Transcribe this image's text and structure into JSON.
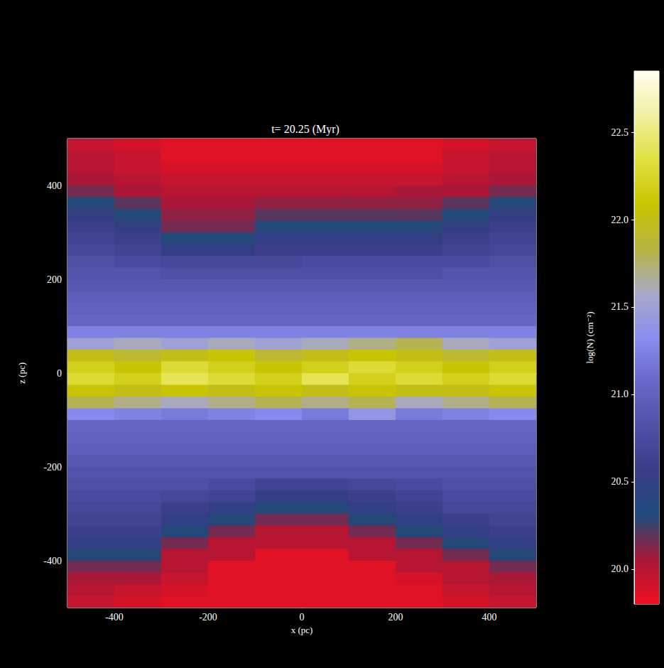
{
  "chart_data": {
    "type": "heatmap",
    "title": "t= 20.25 (Myr)",
    "x_label": "x (pc)",
    "y_label": "z (pc)",
    "xlim": [
      -500,
      500
    ],
    "ylim": [
      -500,
      500
    ],
    "xticks": [
      -400,
      -200,
      0,
      200,
      400
    ],
    "yticks": [
      -400,
      -200,
      0,
      200,
      400
    ],
    "x": [
      -450,
      -350,
      -250,
      -150,
      -50,
      50,
      150,
      250,
      350,
      450
    ],
    "z": [
      487.5,
      462.5,
      437.5,
      412.5,
      387.5,
      362.5,
      337.5,
      312.5,
      287.5,
      262.5,
      237.5,
      212.5,
      187.5,
      162.5,
      137.5,
      112.5,
      87.5,
      62.5,
      37.5,
      12.5,
      -12.5,
      -37.5,
      -62.5,
      -87.5,
      -112.5,
      -137.5,
      -162.5,
      -187.5,
      -212.5,
      -237.5,
      -262.5,
      -287.5,
      -312.5,
      -337.5,
      -362.5,
      -387.5,
      -412.5,
      -437.5,
      -462.5,
      -487.5
    ],
    "values": [
      [
        19.95,
        19.9,
        19.85,
        19.85,
        19.85,
        19.85,
        19.85,
        19.85,
        19.9,
        19.95
      ],
      [
        20.0,
        19.95,
        19.85,
        19.85,
        19.85,
        19.85,
        19.85,
        19.85,
        19.95,
        20.0
      ],
      [
        20.0,
        19.95,
        19.9,
        19.9,
        19.9,
        19.9,
        19.9,
        19.9,
        19.95,
        20.0
      ],
      [
        20.05,
        20.0,
        19.95,
        19.95,
        19.95,
        19.95,
        19.95,
        19.95,
        20.0,
        20.05
      ],
      [
        20.15,
        20.05,
        20.0,
        20.0,
        20.0,
        20.0,
        20.0,
        20.05,
        20.05,
        20.15
      ],
      [
        20.3,
        20.2,
        20.05,
        20.05,
        20.1,
        20.1,
        20.1,
        20.1,
        20.2,
        20.3
      ],
      [
        20.5,
        20.3,
        20.1,
        20.1,
        20.2,
        20.2,
        20.2,
        20.2,
        20.3,
        20.5
      ],
      [
        20.6,
        20.5,
        20.15,
        20.15,
        20.3,
        20.3,
        20.3,
        20.3,
        20.5,
        20.6
      ],
      [
        20.65,
        20.6,
        20.3,
        20.3,
        20.5,
        20.5,
        20.5,
        20.5,
        20.6,
        20.65
      ],
      [
        20.7,
        20.65,
        20.5,
        20.5,
        20.6,
        20.6,
        20.6,
        20.6,
        20.65,
        20.7
      ],
      [
        20.8,
        20.75,
        20.7,
        20.7,
        20.7,
        20.75,
        20.75,
        20.75,
        20.75,
        20.8
      ],
      [
        20.85,
        20.85,
        20.8,
        20.8,
        20.8,
        20.8,
        20.8,
        20.8,
        20.85,
        20.85
      ],
      [
        20.9,
        20.9,
        20.9,
        20.9,
        20.9,
        20.9,
        20.9,
        20.9,
        20.9,
        20.9
      ],
      [
        20.95,
        20.95,
        20.95,
        20.95,
        20.95,
        20.95,
        20.95,
        20.95,
        20.95,
        20.95
      ],
      [
        21.0,
        21.0,
        21.0,
        21.0,
        21.0,
        21.0,
        21.0,
        21.0,
        21.0,
        21.0
      ],
      [
        21.05,
        21.05,
        21.05,
        21.05,
        21.05,
        21.05,
        21.05,
        21.05,
        21.05,
        21.05
      ],
      [
        21.25,
        21.25,
        21.25,
        21.25,
        21.25,
        21.25,
        21.25,
        21.25,
        21.25,
        21.25
      ],
      [
        21.5,
        21.6,
        21.5,
        21.6,
        21.5,
        21.6,
        21.7,
        21.8,
        21.6,
        21.5
      ],
      [
        22.0,
        21.9,
        22.0,
        22.1,
        21.9,
        22.0,
        22.1,
        22.0,
        21.9,
        22.0
      ],
      [
        22.2,
        22.1,
        22.3,
        22.2,
        22.1,
        22.2,
        22.3,
        22.2,
        22.1,
        22.2
      ],
      [
        22.3,
        22.2,
        22.4,
        22.3,
        22.2,
        22.4,
        22.2,
        22.3,
        22.2,
        22.3
      ],
      [
        22.1,
        22.0,
        22.1,
        22.0,
        22.1,
        22.0,
        22.1,
        22.0,
        22.0,
        22.1
      ],
      [
        21.8,
        21.7,
        21.6,
        21.7,
        21.8,
        21.7,
        21.8,
        21.6,
        21.7,
        21.8
      ],
      [
        21.3,
        21.25,
        21.2,
        21.25,
        21.3,
        21.2,
        21.4,
        21.2,
        21.25,
        21.3
      ],
      [
        21.05,
        21.05,
        21.05,
        21.05,
        21.05,
        21.05,
        21.05,
        21.05,
        21.05,
        21.05
      ],
      [
        21.0,
        21.0,
        21.0,
        21.0,
        21.0,
        21.0,
        21.0,
        21.0,
        21.0,
        21.0
      ],
      [
        20.95,
        20.95,
        20.95,
        20.95,
        20.95,
        20.95,
        20.95,
        20.95,
        20.95,
        20.95
      ],
      [
        20.9,
        20.9,
        20.9,
        20.9,
        20.9,
        20.9,
        20.9,
        20.9,
        20.9,
        20.9
      ],
      [
        20.85,
        20.85,
        20.85,
        20.85,
        20.85,
        20.85,
        20.85,
        20.85,
        20.85,
        20.85
      ],
      [
        20.8,
        20.8,
        20.8,
        20.75,
        20.65,
        20.65,
        20.7,
        20.75,
        20.8,
        20.8
      ],
      [
        20.75,
        20.75,
        20.7,
        20.65,
        20.5,
        20.5,
        20.6,
        20.65,
        20.75,
        20.75
      ],
      [
        20.7,
        20.7,
        20.6,
        20.5,
        20.3,
        20.3,
        20.5,
        20.6,
        20.7,
        20.7
      ],
      [
        20.65,
        20.65,
        20.5,
        20.3,
        20.15,
        20.15,
        20.3,
        20.5,
        20.6,
        20.65
      ],
      [
        20.6,
        20.6,
        20.3,
        20.15,
        20.0,
        20.0,
        20.15,
        20.3,
        20.5,
        20.6
      ],
      [
        20.5,
        20.5,
        20.15,
        20.0,
        20.0,
        20.0,
        20.0,
        20.15,
        20.3,
        20.5
      ],
      [
        20.3,
        20.3,
        20.0,
        20.0,
        19.85,
        19.85,
        20.0,
        20.0,
        20.15,
        20.3
      ],
      [
        20.15,
        20.15,
        20.0,
        19.85,
        19.85,
        19.85,
        19.85,
        20.0,
        20.0,
        20.15
      ],
      [
        20.05,
        20.05,
        19.95,
        19.85,
        19.85,
        19.85,
        19.85,
        19.9,
        20.0,
        20.05
      ],
      [
        20.0,
        19.95,
        19.9,
        19.85,
        19.85,
        19.85,
        19.85,
        19.85,
        19.95,
        20.0
      ],
      [
        19.95,
        19.9,
        19.85,
        19.85,
        19.85,
        19.85,
        19.85,
        19.85,
        19.9,
        19.95
      ]
    ],
    "colorbar": {
      "label": "log(N) (cm⁻²)",
      "range": [
        19.8,
        22.85
      ],
      "ticks": [
        {
          "value": 20,
          "label": "20.0"
        },
        20.5,
        {
          "value": 21,
          "label": "21.0"
        },
        21.5,
        {
          "value": 22,
          "label": "22.0"
        },
        22.5
      ]
    }
  }
}
